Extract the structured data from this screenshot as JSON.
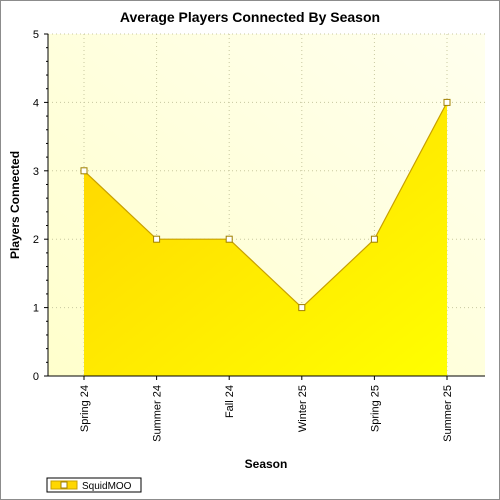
{
  "chart_data": {
    "type": "area",
    "title": "Average Players Connected By Season",
    "xlabel": "Season",
    "ylabel": "Players Connected",
    "categories": [
      "Spring 24",
      "Summer 24",
      "Fall 24",
      "Winter 25",
      "Spring 25",
      "Summer 25"
    ],
    "series": [
      {
        "name": "SquidMOO",
        "values": [
          3,
          2,
          2,
          1,
          2,
          4
        ]
      }
    ],
    "ylim": [
      0,
      5
    ],
    "yticks": [
      "0",
      "1",
      "2",
      "3",
      "4",
      "5"
    ],
    "grid": true,
    "legend": "bottom-left",
    "colors": {
      "area_top": "#ffd700",
      "area_bottom": "#ffff00",
      "line": "#c8a000",
      "marker_fill": "#ffffff",
      "marker_stroke": "#a08000",
      "plot_bg_light": "#ffffe6",
      "plot_bg": "#fffff0",
      "grid": "#c8c8a0"
    }
  }
}
